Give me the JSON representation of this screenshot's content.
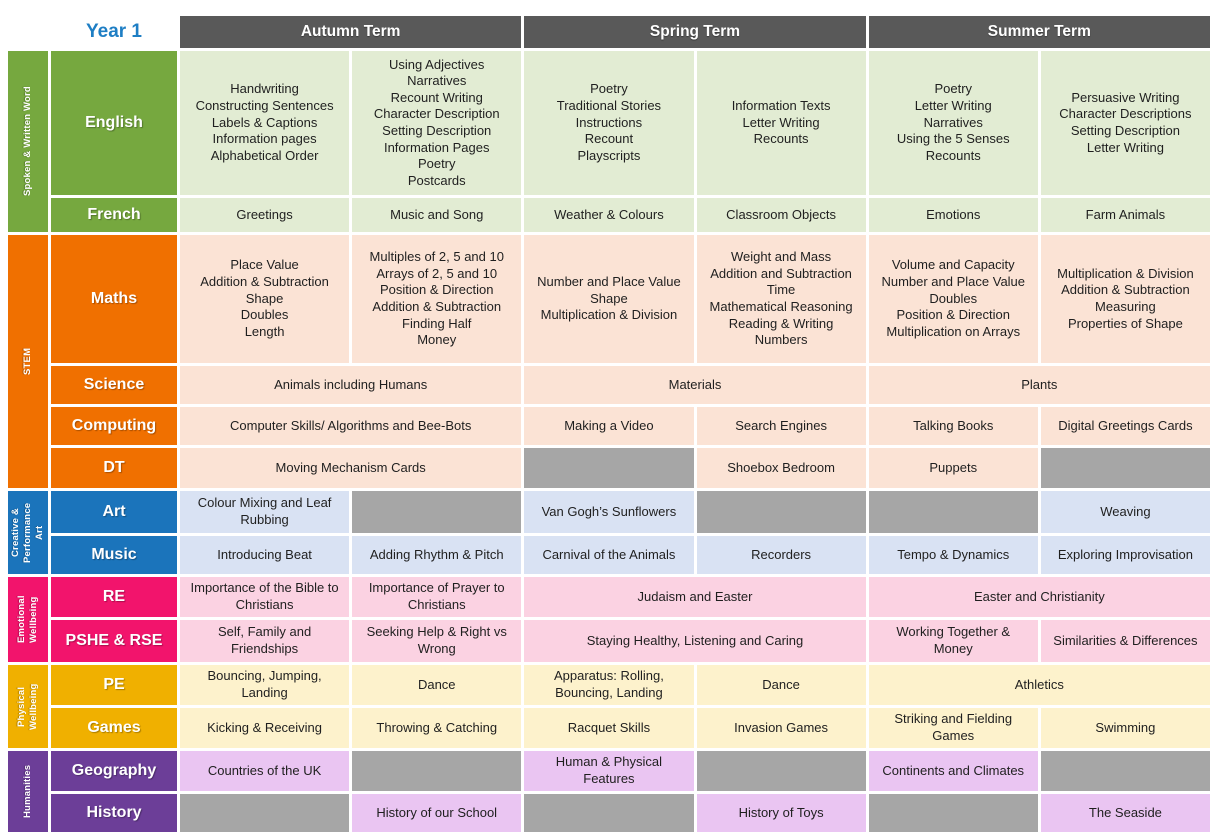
{
  "page": {
    "year_label": "Year 1"
  },
  "terms": [
    "Autumn Term",
    "Spring Term",
    "Summer Term"
  ],
  "colors": {
    "header_bg": "#595959",
    "header_text": "#ffffff",
    "year_label": "#1e7ec4",
    "empty_cell": "#a6a6a6",
    "cell_text": "#1f1f1f",
    "page_bg": "#ffffff"
  },
  "categories": [
    {
      "label": "Spoken & Written Word",
      "color": "#76a83f",
      "cell_bg": "#e2ecd3",
      "subjects": [
        {
          "name": "English",
          "cells": [
            {
              "text": "Handwriting\nConstructing Sentences\nLabels & Captions\nInformation pages\nAlphabetical Order"
            },
            {
              "text": "Using Adjectives\nNarratives\nRecount Writing\nCharacter Description\nSetting Description\nInformation Pages\nPoetry\nPostcards"
            },
            {
              "text": "Poetry\nTraditional Stories\nInstructions\nRecount\nPlayscripts"
            },
            {
              "text": "Information Texts\nLetter Writing\nRecounts"
            },
            {
              "text": "Poetry\nLetter Writing\nNarratives\nUsing the 5 Senses\nRecounts"
            },
            {
              "text": "Persuasive Writing\nCharacter Descriptions\nSetting Description\nLetter Writing"
            }
          ]
        },
        {
          "name": "French",
          "cells": [
            {
              "text": "Greetings"
            },
            {
              "text": "Music and Song"
            },
            {
              "text": "Weather & Colours"
            },
            {
              "text": "Classroom Objects"
            },
            {
              "text": "Emotions"
            },
            {
              "text": "Farm Animals"
            }
          ]
        }
      ]
    },
    {
      "label": "STEM",
      "color": "#f07000",
      "cell_bg": "#fbe3d5",
      "subjects": [
        {
          "name": "Maths",
          "cells": [
            {
              "text": "Place Value\nAddition & Subtraction\nShape\nDoubles\nLength"
            },
            {
              "text": "Multiples of 2, 5 and 10\nArrays of 2, 5 and 10\nPosition & Direction\nAddition & Subtraction\nFinding Half\nMoney"
            },
            {
              "text": "Number and Place Value\nShape\nMultiplication & Division"
            },
            {
              "text": "Weight and Mass\nAddition and Subtraction\nTime\nMathematical Reasoning\nReading & Writing Numbers"
            },
            {
              "text": "Volume and Capacity\nNumber and Place Value\nDoubles\nPosition & Direction\nMultiplication on Arrays"
            },
            {
              "text": "Multiplication & Division\nAddition & Subtraction\nMeasuring\nProperties of Shape"
            }
          ]
        },
        {
          "name": "Science",
          "cells": [
            {
              "text": "Animals including Humans",
              "span": 2
            },
            {
              "text": "Materials",
              "span": 2
            },
            {
              "text": "Plants",
              "span": 2
            }
          ]
        },
        {
          "name": "Computing",
          "cells": [
            {
              "text": "Computer Skills/ Algorithms and Bee-Bots",
              "span": 2
            },
            {
              "text": "Making a Video"
            },
            {
              "text": "Search Engines"
            },
            {
              "text": "Talking Books"
            },
            {
              "text": "Digital Greetings Cards"
            }
          ]
        },
        {
          "name": "DT",
          "cells": [
            {
              "text": "Moving Mechanism Cards",
              "span": 2
            },
            {
              "empty": true
            },
            {
              "text": "Shoebox Bedroom"
            },
            {
              "text": "Puppets"
            },
            {
              "empty": true
            }
          ]
        }
      ]
    },
    {
      "label": "Creative &\nPerformance\nArt",
      "color": "#1b74bb",
      "cell_bg": "#d9e2f3",
      "subjects": [
        {
          "name": "Art",
          "cells": [
            {
              "text": "Colour Mixing and Leaf Rubbing"
            },
            {
              "empty": true
            },
            {
              "text": "Van Gogh’s Sunflowers"
            },
            {
              "empty": true
            },
            {
              "empty": true
            },
            {
              "text": "Weaving"
            }
          ]
        },
        {
          "name": "Music",
          "cells": [
            {
              "text": "Introducing Beat"
            },
            {
              "text": "Adding Rhythm & Pitch"
            },
            {
              "text": "Carnival of the Animals"
            },
            {
              "text": "Recorders"
            },
            {
              "text": "Tempo & Dynamics"
            },
            {
              "text": "Exploring Improvisation"
            }
          ]
        }
      ]
    },
    {
      "label": "Emotional\nWellbeing",
      "color": "#f2146c",
      "cell_bg": "#fbd2e2",
      "subjects": [
        {
          "name": "RE",
          "cells": [
            {
              "text": "Importance of the Bible to Christians"
            },
            {
              "text": "Importance of Prayer to Christians"
            },
            {
              "text": "Judaism and Easter",
              "span": 2
            },
            {
              "text": "Easter and Christianity",
              "span": 2
            }
          ]
        },
        {
          "name": "PSHE & RSE",
          "cells": [
            {
              "text": "Self, Family and Friendships"
            },
            {
              "text": "Seeking Help & Right vs Wrong"
            },
            {
              "text": "Staying Healthy, Listening and Caring",
              "span": 2
            },
            {
              "text": "Working Together & Money"
            },
            {
              "text": "Similarities & Differences"
            }
          ]
        }
      ]
    },
    {
      "label": "Physical\nWellbeing",
      "color": "#f0b000",
      "cell_bg": "#fdf2cc",
      "subjects": [
        {
          "name": "PE",
          "cells": [
            {
              "text": "Bouncing, Jumping, Landing"
            },
            {
              "text": "Dance"
            },
            {
              "text": "Apparatus: Rolling, Bouncing, Landing"
            },
            {
              "text": "Dance"
            },
            {
              "text": "Athletics",
              "span": 2
            }
          ]
        },
        {
          "name": "Games",
          "cells": [
            {
              "text": "Kicking & Receiving"
            },
            {
              "text": "Throwing & Catching"
            },
            {
              "text": "Racquet Skills"
            },
            {
              "text": "Invasion Games"
            },
            {
              "text": "Striking and Fielding Games"
            },
            {
              "text": "Swimming"
            }
          ]
        }
      ]
    },
    {
      "label": "Humanities",
      "color": "#6c3e98",
      "cell_bg": "#eac5f2",
      "subjects": [
        {
          "name": "Geography",
          "cells": [
            {
              "text": "Countries of the UK"
            },
            {
              "empty": true
            },
            {
              "text": "Human & Physical Features"
            },
            {
              "empty": true
            },
            {
              "text": "Continents and Climates"
            },
            {
              "empty": true
            }
          ]
        },
        {
          "name": "History",
          "cells": [
            {
              "empty": true
            },
            {
              "text": "History of our School"
            },
            {
              "empty": true
            },
            {
              "text": "History of Toys"
            },
            {
              "empty": true
            },
            {
              "text": "The Seaside"
            }
          ]
        }
      ]
    }
  ]
}
